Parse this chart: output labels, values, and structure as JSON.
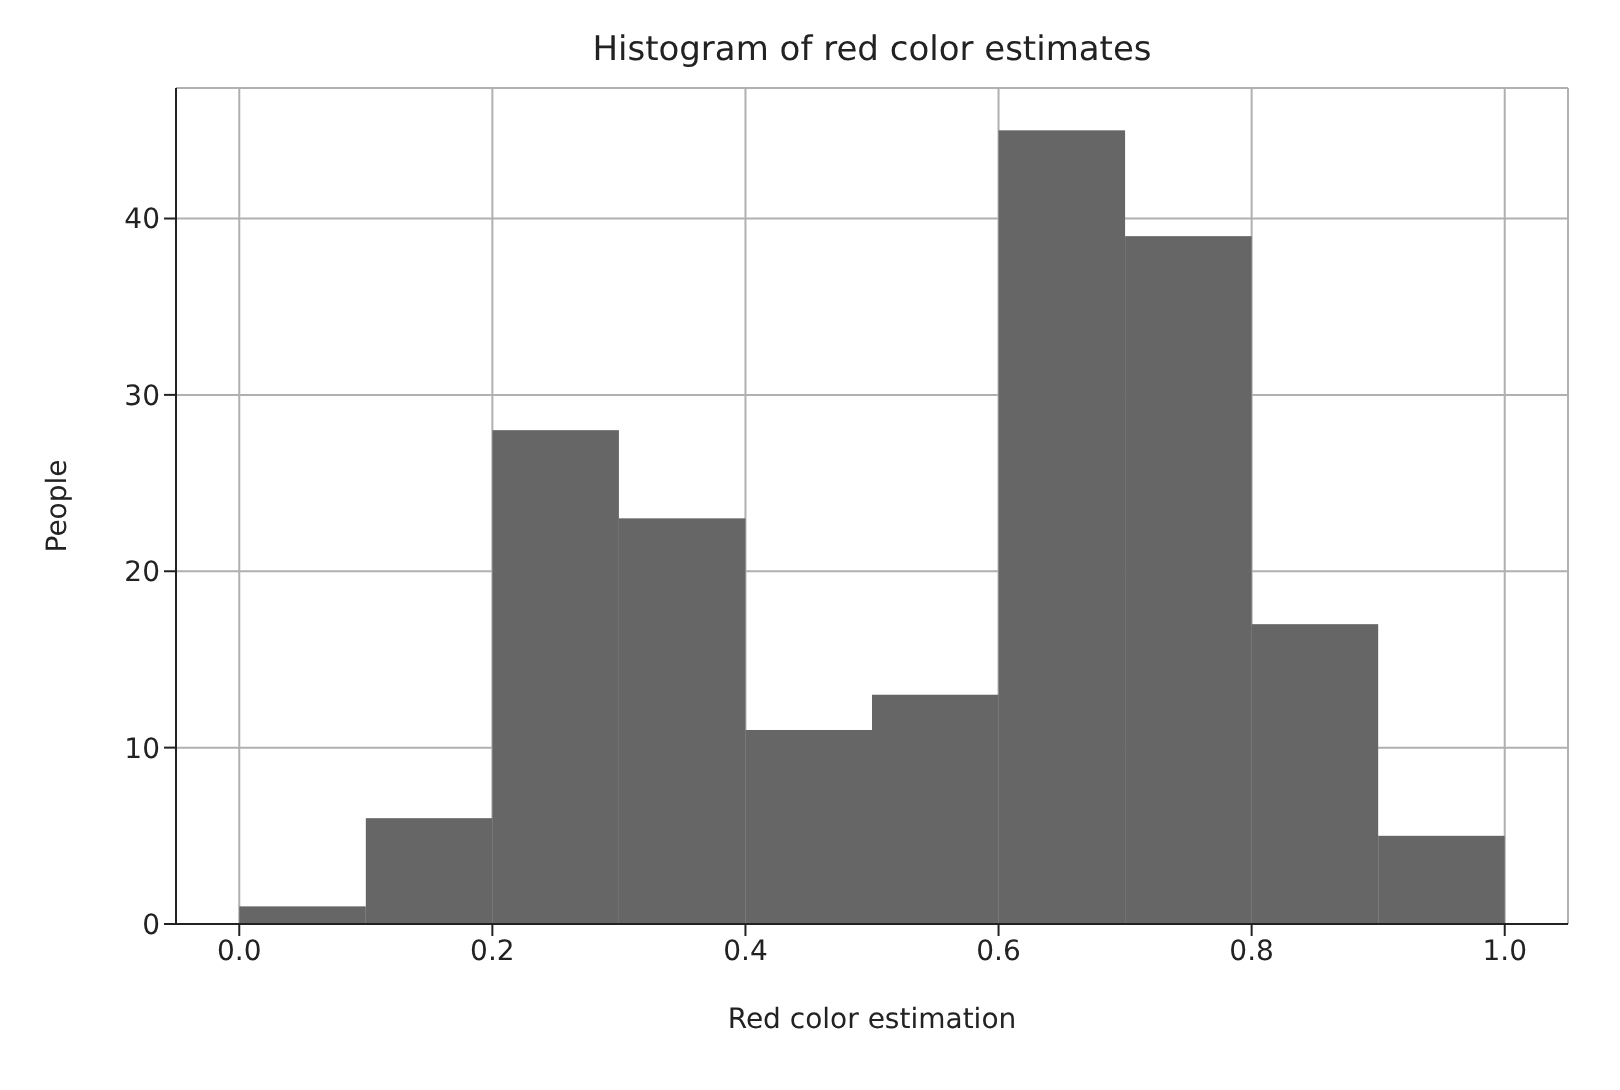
{
  "chart_data": {
    "type": "histogram",
    "title": "Histogram of red color estimates",
    "xlabel": "Red color estimation",
    "ylabel": "People",
    "bins": [
      0,
      0.1,
      0.2,
      0.3,
      0.4,
      0.5,
      0.6,
      0.7,
      0.8,
      0.9,
      1.0
    ],
    "values": [
      1,
      6,
      28,
      23,
      11,
      13,
      45,
      39,
      17,
      5
    ],
    "color": "#666666",
    "xlim": [
      -0.05,
      1.05
    ],
    "ylim": [
      0,
      47.4
    ],
    "xticks": [
      {
        "value": 0,
        "label": "0.0"
      },
      {
        "value": 0.2,
        "label": "0.2"
      },
      {
        "value": 0.4,
        "label": "0.4"
      },
      {
        "value": 0.6,
        "label": "0.6"
      },
      {
        "value": 0.8,
        "label": "0.8"
      },
      {
        "value": 1,
        "label": "1.0"
      }
    ],
    "yticks": [
      0,
      10,
      20,
      30,
      40
    ],
    "grid": true
  }
}
